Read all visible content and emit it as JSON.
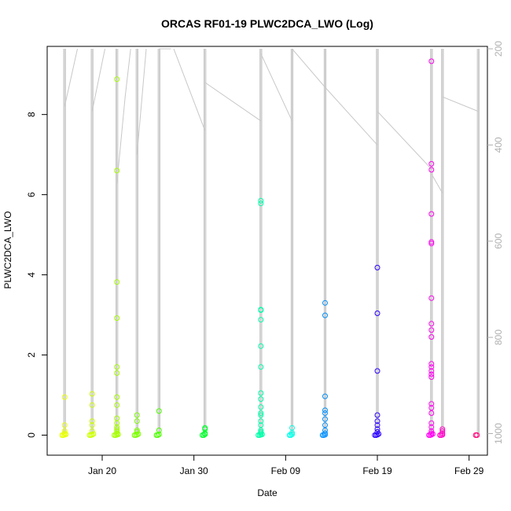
{
  "chart_data": {
    "type": "scatter",
    "title": "ORCAS RF01-19 PLWC2DCA_LWO (Log)",
    "xlabel": "Date",
    "ylabel": "PLWC2DCA_LWO",
    "x_axis": {
      "type": "date",
      "min": "2016-01-14",
      "max": "2016-03-02",
      "ticks": [
        {
          "date": "2016-01-20",
          "label": "Jan 20"
        },
        {
          "date": "2016-01-30",
          "label": "Jan 30"
        },
        {
          "date": "2016-02-09",
          "label": "Feb 09"
        },
        {
          "date": "2016-02-19",
          "label": "Feb 19"
        },
        {
          "date": "2016-02-29",
          "label": "Feb 29"
        }
      ]
    },
    "y_axis": {
      "min": -0.5,
      "max": 9.7,
      "ticks": [
        0,
        2,
        4,
        6,
        8
      ]
    },
    "y2_axis": {
      "label": "",
      "reversed": true,
      "min": 195,
      "max": 1045,
      "ticks": [
        200,
        400,
        600,
        800,
        1000
      ]
    },
    "grid": false,
    "legend": "none",
    "flights": [
      {
        "date": "2016-01-15.9",
        "color": "#e8ff00",
        "values": [
          0,
          0,
          0.01,
          0.02,
          0.05,
          0.1,
          0.25,
          0.95
        ]
      },
      {
        "date": "2016-01-18.9",
        "color": "#ccff00",
        "values": [
          0,
          0,
          0.01,
          0.03,
          0.1,
          0.25,
          0.35,
          0.75,
          1.03
        ]
      },
      {
        "date": "2016-01-21.6",
        "color": "#a6ff00",
        "values": [
          0,
          0,
          0.01,
          0.02,
          0.05,
          0.1,
          0.15,
          0.2,
          0.3,
          0.42,
          0.75,
          0.95,
          1.55,
          1.7,
          2.92,
          3.82,
          6.6,
          8.88
        ]
      },
      {
        "date": "2016-01-23.8",
        "color": "#7cff00",
        "values": [
          0,
          0,
          0.01,
          0.03,
          0.08,
          0.12,
          0.35,
          0.5
        ]
      },
      {
        "date": "2016-01-26.2",
        "color": "#4dff00",
        "values": [
          0,
          0,
          0.02,
          0.12,
          0.6
        ]
      },
      {
        "date": "2016-01-31.2",
        "color": "#00ff2b",
        "values": [
          0,
          0,
          0.02,
          0.05,
          0.15,
          0.18
        ]
      },
      {
        "date": "2016-02-06.3",
        "color": "#00ffaa",
        "values": [
          0,
          0,
          0.01,
          0.02,
          0.05,
          0.08,
          0.12,
          0.25,
          0.35,
          0.5,
          0.55,
          0.7,
          0.9,
          1.05,
          1.7,
          2.22,
          2.88,
          3.12,
          3.13,
          5.78,
          5.85
        ]
      },
      {
        "date": "2016-02-09.7",
        "color": "#00ffe6",
        "values": [
          0,
          0,
          0.02,
          0.06,
          0.18
        ]
      },
      {
        "date": "2016-02-13.3",
        "color": "#0090ff",
        "values": [
          0,
          0,
          0.01,
          0.05,
          0.12,
          0.25,
          0.4,
          0.55,
          0.62,
          0.97,
          2.99,
          3.3
        ]
      },
      {
        "date": "2016-02-19.0",
        "color": "#2a00ff",
        "values": [
          0,
          0,
          0.01,
          0.03,
          0.08,
          0.15,
          0.25,
          0.35,
          0.5,
          1.6,
          3.04,
          4.18
        ]
      },
      {
        "date": "2016-02-24.9",
        "color": "#ff00f0",
        "values": [
          0,
          0,
          0.01,
          0.03,
          0.05,
          0.1,
          0.2,
          0.3,
          0.55,
          0.68,
          0.78,
          1.45,
          1.52,
          1.6,
          1.7,
          1.78,
          2.45,
          2.62,
          2.78,
          3.42,
          4.78,
          4.82,
          5.52,
          6.62,
          6.77,
          9.33
        ]
      },
      {
        "date": "2016-02-26.1",
        "color": "#ff00c8",
        "values": [
          0,
          0,
          0.01,
          0.05,
          0.1,
          0.15
        ]
      },
      {
        "date": "2016-03-01.0",
        "color": "#ff0077",
        "values": [
          0,
          0
        ]
      }
    ],
    "altitude_trace": {
      "flight_sections": [
        {
          "date": "2016-01-15.9",
          "alt_min": 200,
          "alt_max": 1000
        },
        {
          "date": "2016-01-18.9",
          "alt_min": 200,
          "alt_max": 1000
        },
        {
          "date": "2016-01-21.6",
          "alt_min": 200,
          "alt_max": 1000
        },
        {
          "date": "2016-01-23.8",
          "alt_min": 200,
          "alt_max": 1000
        },
        {
          "date": "2016-01-26.2",
          "alt_min": 200,
          "alt_max": 1000
        },
        {
          "date": "2016-01-31.2",
          "alt_min": 200,
          "alt_max": 1000
        },
        {
          "date": "2016-02-06.3",
          "alt_min": 200,
          "alt_max": 1000
        },
        {
          "date": "2016-02-09.7",
          "alt_min": 200,
          "alt_max": 1000
        },
        {
          "date": "2016-02-13.3",
          "alt_min": 200,
          "alt_max": 1000
        },
        {
          "date": "2016-02-19.0",
          "alt_min": 200,
          "alt_max": 1000
        },
        {
          "date": "2016-02-24.9",
          "alt_min": 200,
          "alt_max": 1000
        },
        {
          "date": "2016-02-26.1",
          "alt_min": 200,
          "alt_max": 1000
        },
        {
          "date": "2016-03-01.0",
          "alt_min": 200,
          "alt_max": 1000
        }
      ],
      "connectors": [
        [
          [
            "2016-01-15.9",
            320
          ],
          [
            "2016-01-17.3",
            200
          ]
        ],
        [
          [
            "2016-01-18.9",
            330
          ],
          [
            "2016-01-20.3",
            200
          ]
        ],
        [
          [
            "2016-01-21.6",
            480
          ],
          [
            "2016-01-22.5",
            300
          ],
          [
            "2016-01-23.1",
            200
          ]
        ],
        [
          [
            "2016-01-23.8",
            420
          ],
          [
            "2016-01-24.8",
            200
          ]
        ],
        [
          [
            "2016-01-26.2",
            200
          ],
          [
            "2016-01-27.5",
            200
          ]
        ],
        [
          [
            "2016-01-27.8",
            200
          ],
          [
            "2016-01-31.2",
            370
          ]
        ],
        [
          [
            "2016-01-31.2",
            270
          ],
          [
            "2016-02-06.3",
            350
          ]
        ],
        [
          [
            "2016-02-06.3",
            210
          ],
          [
            "2016-02-09.7",
            350
          ]
        ],
        [
          [
            "2016-02-09.7",
            200
          ],
          [
            "2016-02-13.3",
            280
          ]
        ],
        [
          [
            "2016-02-13.3",
            280
          ],
          [
            "2016-02-19.0",
            400
          ]
        ],
        [
          [
            "2016-02-19.0",
            330
          ],
          [
            "2016-02-24.9",
            450
          ]
        ],
        [
          [
            "2016-02-24.9",
            460
          ],
          [
            "2016-02-26.1",
            500
          ]
        ],
        [
          [
            "2016-02-26.1",
            300
          ],
          [
            "2016-03-01.0",
            330
          ]
        ]
      ]
    }
  }
}
